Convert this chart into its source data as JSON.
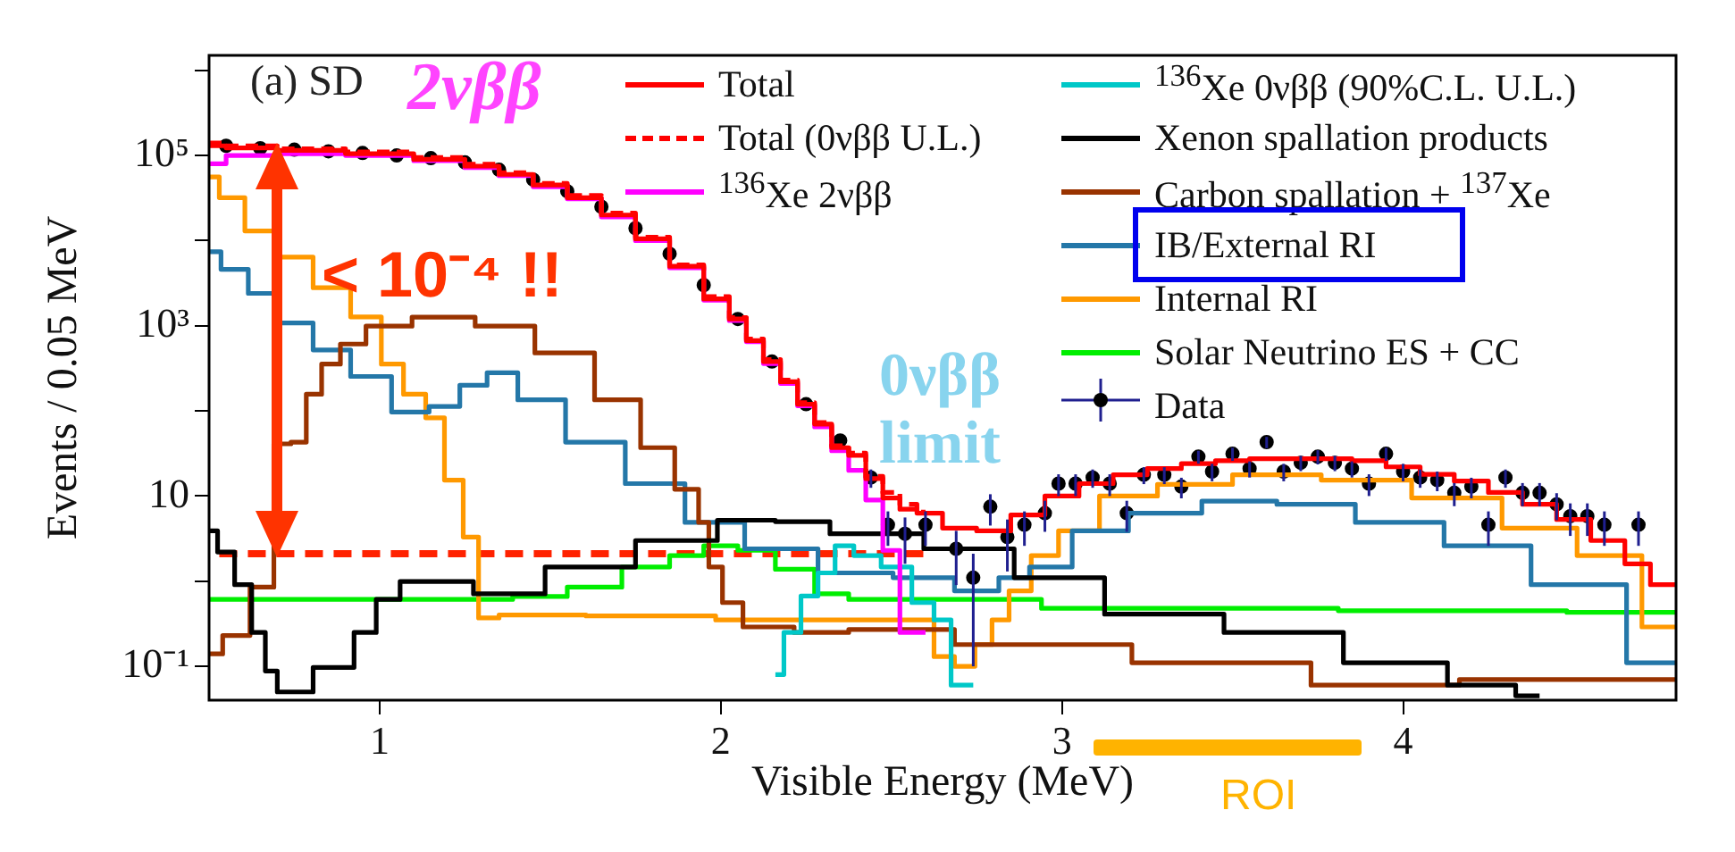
{
  "chart_data": {
    "type": "step",
    "xlabel": "Visible Energy (MeV)",
    "ylabel": "Events / 0.05 MeV",
    "xlim": [
      0.5,
      4.8
    ],
    "xticks": [
      1,
      2,
      3,
      4
    ],
    "ylim": [
      0.04,
      1500000
    ],
    "yticks": [
      {
        "value": 0.1,
        "label": "10⁻¹"
      },
      {
        "value": 1,
        "label": null
      },
      {
        "value": 10,
        "label": "10"
      },
      {
        "value": 100,
        "label": null
      },
      {
        "value": 1000,
        "label": "10³"
      },
      {
        "value": 10000,
        "label": null
      },
      {
        "value": 100000,
        "label": "10⁵"
      },
      {
        "value": 1000000,
        "label": null
      }
    ],
    "log": "y",
    "grid": false,
    "legend": "top right",
    "annotations": [
      "(a) SD",
      "2νββ",
      "< 10⁻⁴ !!",
      "0νββ limit",
      "ROI"
    ],
    "series": [
      {
        "name": "Total",
        "color": "#ff0000",
        "x": [
          0.5,
          0.6,
          0.8,
          1.0,
          1.2,
          1.3,
          1.4,
          1.5,
          1.6,
          1.7,
          1.8,
          1.9,
          2.0,
          2.05,
          2.1,
          2.15,
          2.2,
          2.25,
          2.3,
          2.35,
          2.4,
          2.45,
          2.5,
          2.55,
          2.6,
          2.7,
          2.8,
          2.9,
          3.0,
          3.1,
          3.2,
          3.3,
          3.4,
          3.5,
          3.6,
          3.7,
          3.8,
          3.9,
          4.0,
          4.1,
          4.2,
          4.3,
          4.4,
          4.5,
          4.6,
          4.7,
          4.75,
          4.8
        ],
        "values": [
          130000,
          123000,
          115000,
          105000,
          90000,
          75000,
          60000,
          45000,
          32000,
          20000,
          10500,
          5000,
          2070,
          1200,
          670,
          380,
          220,
          120,
          70,
          37,
          30,
          16,
          9.5,
          7,
          6.3,
          4.2,
          3.9,
          6,
          10,
          14,
          17.8,
          21,
          24,
          26,
          27.5,
          27.5,
          27.5,
          26,
          22,
          18,
          15,
          11,
          8,
          5.3,
          3,
          1.6,
          0.91,
          0.91
        ]
      },
      {
        "name": "Total (0νββ U.L.)",
        "color": "#ff0000",
        "line_style": "dashed",
        "x": [
          0.5,
          0.6,
          0.8,
          1.0,
          1.2,
          1.3,
          1.4,
          1.5,
          1.6,
          1.7,
          1.8,
          1.9,
          2.0,
          2.05,
          2.1,
          2.15,
          2.2,
          2.25,
          2.3,
          2.35,
          2.4,
          2.45,
          2.5,
          2.55,
          2.6
        ],
        "values": [
          140000,
          130000,
          120000,
          110000,
          95000,
          79000,
          63000,
          47000,
          34000,
          21000,
          11000,
          5200,
          2200,
          1250,
          700,
          400,
          230,
          125,
          73,
          39,
          32,
          17,
          11,
          8,
          6.5
        ]
      },
      {
        "name": "$^{136}$Xe 2νββ",
        "color": "#ff00ff",
        "x": [
          0.5,
          0.6,
          0.8,
          1.0,
          1.2,
          1.3,
          1.4,
          1.5,
          1.6,
          1.7,
          1.8,
          1.9,
          2.0,
          2.05,
          2.1,
          2.15,
          2.2,
          2.25,
          2.3,
          2.35,
          2.4,
          2.45,
          2.5,
          2.55,
          2.6
        ],
        "values": [
          80000,
          100000,
          105000,
          100000,
          87000,
          72000,
          58000,
          43000,
          31000,
          19000,
          10000,
          4800,
          2000,
          1150,
          650,
          360,
          210,
          115,
          65,
          34,
          20,
          9,
          2.3,
          0.25,
          0.25
        ]
      },
      {
        "name": "$^{136}$Xe 0νββ (90%C.L. U.L.)",
        "color": "#00c8c8",
        "x": [
          2.16,
          2.21,
          2.26,
          2.31,
          2.36,
          2.42,
          2.52,
          2.6,
          2.65,
          2.7,
          2.74
        ],
        "values": [
          0.08,
          0.25,
          0.67,
          1.25,
          2.6,
          2,
          1.47,
          0.56,
          0.35,
          0.06,
          0.06
        ]
      },
      {
        "name": "Xenon spallation products",
        "color": "#000000",
        "x": [
          0.5,
          0.55,
          0.6,
          0.65,
          0.68,
          0.72,
          0.89,
          0.96,
          1.02,
          1.1,
          1.2,
          1.35,
          1.62,
          1.88,
          2.1,
          2.22,
          2.42,
          2.77,
          2.95,
          3.3,
          3.65,
          4.0,
          4.26,
          4.4
        ],
        "values": [
          3.9,
          2.2,
          0.91,
          0.25,
          0.088,
          0.05,
          0.097,
          0.25,
          0.61,
          0.99,
          0.99,
          0.71,
          1.47,
          3,
          5.2,
          5,
          3.6,
          2.4,
          1.1,
          0.41,
          0.25,
          0.11,
          0.06,
          0.045
        ]
      },
      {
        "name": "Carbon spallation + $^{137}$Xe",
        "color": "#993300",
        "x": [
          0.5,
          0.58,
          0.66,
          0.72,
          0.76,
          0.81,
          0.85,
          0.92,
          1.0,
          1.19,
          1.37,
          1.54,
          1.72,
          1.81,
          1.92,
          1.95,
          1.98,
          2.03,
          2.1,
          2.33,
          2.42,
          2.95,
          3.46,
          4.0,
          4.33,
          4.8
        ],
        "values": [
          0.14,
          0.23,
          0.85,
          41,
          43,
          157,
          355,
          610,
          990,
          1260,
          990,
          480,
          135,
          37,
          12,
          4.9,
          1.47,
          0.56,
          0.29,
          0.25,
          0.27,
          0.18,
          0.11,
          0.06,
          0.07,
          0.07
        ]
      },
      {
        "name": "IB/External RI",
        "color": "#2477a8",
        "x": [
          0.5,
          0.57,
          0.66,
          0.75,
          0.86,
          0.97,
          1.1,
          1.19,
          1.28,
          1.35,
          1.46,
          1.63,
          1.81,
          1.98,
          2.16,
          2.41,
          2.6,
          2.77,
          2.86,
          2.95,
          3.11,
          3.28,
          3.54,
          3.72,
          4.0,
          4.24,
          4.51,
          4.8
        ],
        "values": [
          7400,
          4600,
          2400,
          1080,
          520,
          254,
          97,
          113,
          200,
          280,
          135,
          43,
          14,
          4.9,
          2.4,
          1.25,
          1.1,
          0.77,
          1.1,
          1.47,
          3.9,
          6.3,
          8.7,
          8,
          4.9,
          2.6,
          0.91,
          0.11
        ]
      },
      {
        "name": "Internal RI",
        "color": "#ff9900",
        "x": [
          0.5,
          0.56,
          0.65,
          0.75,
          0.86,
          0.97,
          1.04,
          1.1,
          1.17,
          1.21,
          1.28,
          1.3,
          1.4,
          1.81,
          2.16,
          2.6,
          2.65,
          2.72,
          2.77,
          2.82,
          2.87,
          2.95,
          3.03,
          3.19,
          3.37,
          3.63,
          3.89,
          4.16,
          4.42,
          4.6,
          4.8
        ],
        "values": [
          56000,
          32000,
          13000,
          6400,
          2800,
          1270,
          355,
          157,
          83,
          15.4,
          3.3,
          0.37,
          0.4,
          0.39,
          0.35,
          0.35,
          0.13,
          0.1,
          0.18,
          0.35,
          0.77,
          2,
          3.9,
          10,
          13.7,
          17.8,
          15.4,
          9.5,
          4.2,
          2,
          0.29
        ]
      },
      {
        "name": "Solar Neutrino ES + CC",
        "color": "#00ee00",
        "x": [
          0.5,
          1.3,
          1.48,
          1.62,
          1.8,
          1.9,
          2.0,
          2.1,
          2.22,
          2.33,
          2.42,
          3.46,
          4.16,
          4.8
        ],
        "values": [
          0.61,
          0.61,
          0.66,
          0.85,
          1.47,
          2,
          2.6,
          2.3,
          1.38,
          0.71,
          0.61,
          0.48,
          0.45,
          0.43
        ]
      },
      {
        "name": "Data",
        "type": "scatter",
        "marker": "circle",
        "color": "#000000",
        "x": [
          0.55,
          0.65,
          0.75,
          0.85,
          0.95,
          1.05,
          1.15,
          1.25,
          1.35,
          1.45,
          1.55,
          1.65,
          1.75,
          1.85,
          1.95,
          2.05,
          2.15,
          2.25,
          2.35,
          2.44,
          2.49,
          2.54,
          2.6,
          2.69,
          2.74,
          2.79,
          2.84,
          2.89,
          2.95,
          2.99,
          3.04,
          3.09,
          3.14,
          3.19,
          3.24,
          3.3,
          3.35,
          3.4,
          3.44,
          3.5,
          3.55,
          3.6,
          3.65,
          3.7,
          3.75,
          3.8,
          3.85,
          3.9,
          3.95,
          4.0,
          4.05,
          4.1,
          4.15,
          4.2,
          4.25,
          4.3,
          4.35,
          4.4,
          4.45,
          4.49,
          4.54,
          4.59,
          4.69
        ],
        "values": [
          130000,
          122000,
          117000,
          112000,
          107000,
          100000,
          93000,
          83000,
          68000,
          52000,
          38000,
          25000,
          14000,
          7000,
          3000,
          1200,
          380,
          120,
          45,
          16.5,
          4.6,
          3.6,
          4.6,
          2.4,
          1.1,
          7.5,
          3.3,
          4.6,
          6.3,
          14,
          14,
          16.5,
          14,
          6.3,
          17.8,
          17.8,
          12.9,
          29,
          19.4,
          31.4,
          21,
          43,
          19.4,
          24.6,
          29,
          24.6,
          21,
          14,
          31.4,
          19.4,
          16.5,
          15.4,
          10.9,
          12.9,
          4.6,
          16.5,
          10.9,
          10.9,
          8,
          5.8,
          5.8,
          4.6,
          4.6
        ],
        "errors": [
          null,
          null,
          null,
          null,
          null,
          null,
          null,
          null,
          null,
          null,
          null,
          null,
          null,
          null,
          null,
          null,
          null,
          null,
          null,
          4,
          2,
          2,
          2,
          1.5,
          1,
          3,
          2,
          2,
          2.5,
          4,
          4,
          4,
          4,
          2.5,
          4,
          4,
          3.5,
          5,
          4.5,
          5.5,
          4.5,
          6.5,
          4.5,
          5,
          5.5,
          5,
          4.5,
          4,
          5.5,
          4.5,
          4,
          4,
          3.3,
          3.5,
          2,
          4,
          3.3,
          3.3,
          2.8,
          2.4,
          2.4,
          2,
          2
        ]
      },
      {
        "type": "line",
        "color": "#ff2200",
        "line_style": "dotted",
        "x": [
          0.53,
          2.6
        ],
        "values": [
          2.1,
          2.1
        ]
      }
    ]
  }
}
